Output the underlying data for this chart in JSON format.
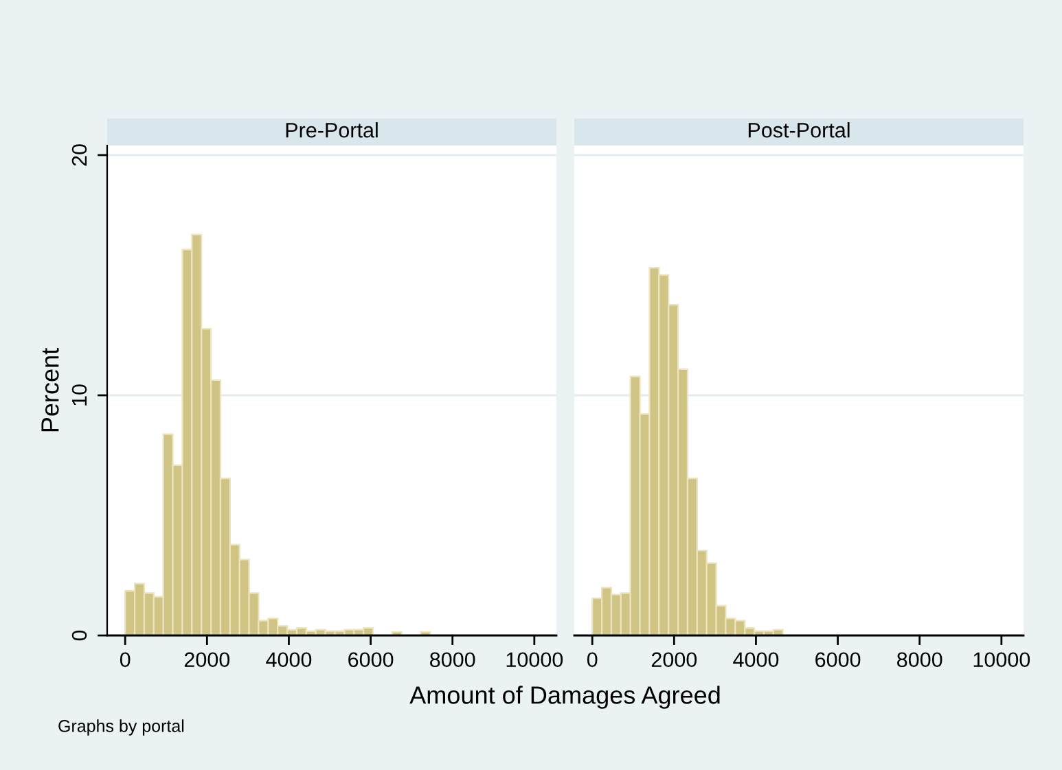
{
  "chart_data": [
    {
      "type": "histogram",
      "title": "Pre-Portal",
      "ylabel": "Percent",
      "xlabel": "Amount of Damages Agreed",
      "annotations": [
        "Graphs by portal"
      ],
      "bins": [
        0,
        233,
        466,
        699,
        932,
        1165,
        1398,
        1631,
        1864,
        2097,
        2330,
        2563,
        2796,
        3029,
        3262,
        3495,
        3728,
        3961,
        4194,
        4427,
        4660,
        4893,
        5126,
        5359,
        5592,
        5825,
        6058,
        6291,
        6524,
        6757,
        6990,
        7223,
        7456
      ],
      "values": [
        1.86,
        2.16,
        1.77,
        1.61,
        8.38,
        7.09,
        16.07,
        16.69,
        12.77,
        10.63,
        6.54,
        3.78,
        3.16,
        1.77,
        0.62,
        0.71,
        0.4,
        0.24,
        0.31,
        0.18,
        0.24,
        0.18,
        0.18,
        0.24,
        0.24,
        0.31,
        0,
        0,
        0.15,
        0,
        0,
        0.15
      ],
      "color": "#d0c485",
      "xlim": [
        -440,
        10540
      ],
      "xticks": [
        0,
        2000,
        4000,
        6000,
        8000,
        10000
      ],
      "ylim": [
        0,
        20.4
      ],
      "yticks": [
        0,
        10,
        20
      ],
      "grid": "y"
    },
    {
      "type": "histogram",
      "title": "Post-Portal",
      "bins": [
        0,
        233,
        466,
        699,
        932,
        1165,
        1398,
        1631,
        1864,
        2097,
        2330,
        2563,
        2796,
        3029,
        3262,
        3495,
        3728,
        3961,
        4194,
        4427,
        4660
      ],
      "values": [
        1.55,
        1.99,
        1.7,
        1.77,
        10.78,
        9.22,
        15.31,
        15.01,
        13.77,
        11.09,
        6.54,
        3.54,
        3.01,
        1.24,
        0.71,
        0.62,
        0.31,
        0.18,
        0.18,
        0.24
      ],
      "color": "#d0c485",
      "xlim": [
        -440,
        10540
      ],
      "xticks": [
        0,
        2000,
        4000,
        6000,
        8000,
        10000
      ],
      "ylim": [
        0,
        20.4
      ],
      "yticks": [
        0,
        10,
        20
      ],
      "grid": "y",
      "tick_labels": "x"
    }
  ]
}
